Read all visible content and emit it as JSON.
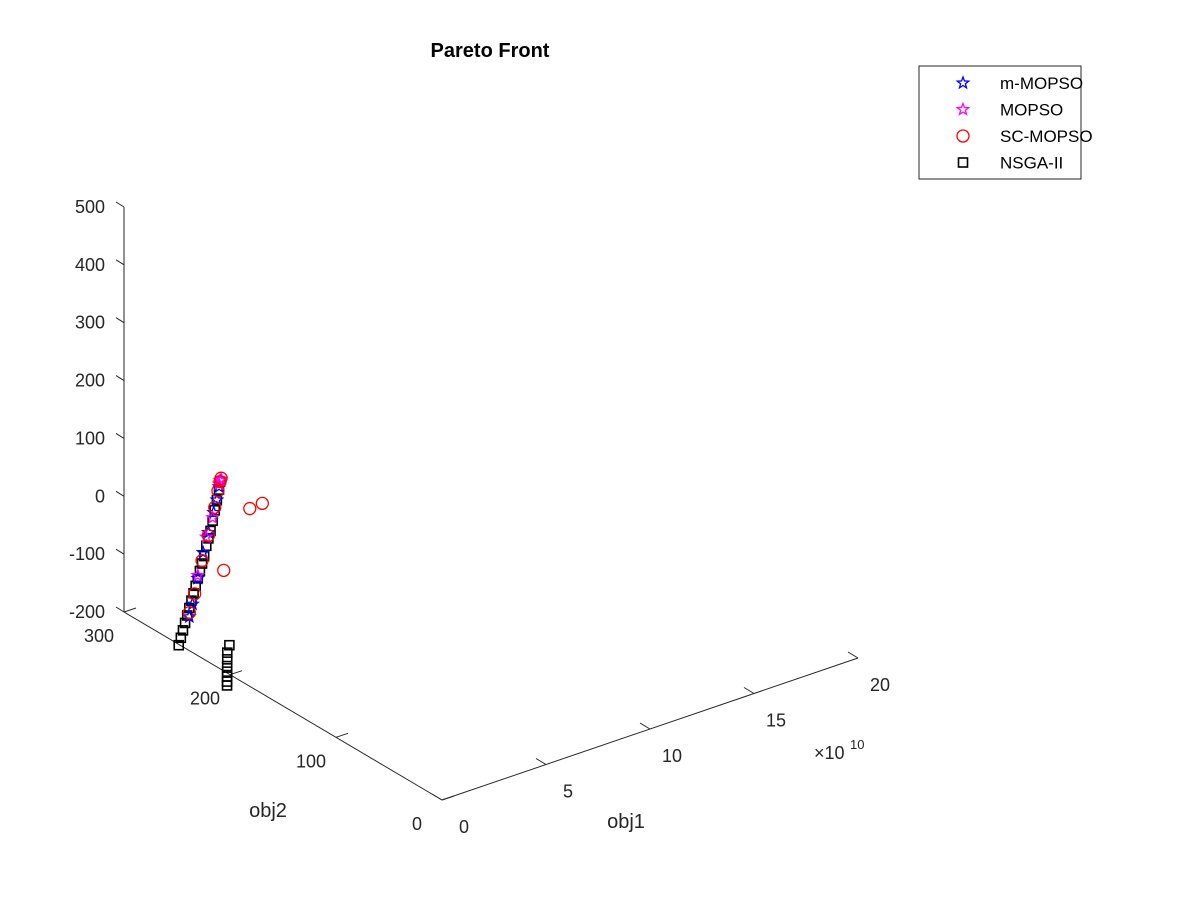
{
  "chart_data": {
    "type": "scatter",
    "projection": "3d",
    "title": "Pareto Front",
    "xlabel": "obj1",
    "ylabel": "obj2",
    "zlabel": "",
    "x_exponent": "×10",
    "x_exponent_power": "10",
    "xlim": [
      0,
      20
    ],
    "ylim": [
      0,
      300
    ],
    "zlim": [
      -200,
      500
    ],
    "x_ticks": [
      0,
      5,
      10,
      15,
      20
    ],
    "x_tick_labels": [
      "0",
      "5",
      "10",
      "15",
      "20"
    ],
    "y_ticks": [
      0,
      100,
      200,
      300
    ],
    "y_tick_labels": [
      "0",
      "100",
      "200",
      "300"
    ],
    "z_ticks": [
      -200,
      -100,
      0,
      100,
      200,
      300,
      400,
      500
    ],
    "z_tick_labels": [
      "-200",
      "-100",
      "0",
      "100",
      "200",
      "300",
      "400",
      "500"
    ],
    "grid": false,
    "legend_position": "top-right",
    "series": [
      {
        "name": "m-MOPSO",
        "marker": "star",
        "color": "#0000ff",
        "points": [
          {
            "x": 1.0,
            "y": 230,
            "z": 80
          },
          {
            "x": 1.0,
            "y": 232,
            "z": 55
          },
          {
            "x": 1.0,
            "y": 235,
            "z": 30
          },
          {
            "x": 1.0,
            "y": 240,
            "z": -10
          },
          {
            "x": 1.0,
            "y": 245,
            "z": -50
          },
          {
            "x": 1.0,
            "y": 250,
            "z": -100
          },
          {
            "x": 1.0,
            "y": 255,
            "z": -150
          },
          {
            "x": 1.0,
            "y": 258,
            "z": -175
          }
        ]
      },
      {
        "name": "MOPSO",
        "marker": "star",
        "color": "#ff00ff",
        "points": [
          {
            "x": 1.0,
            "y": 228,
            "z": 95
          },
          {
            "x": 1.0,
            "y": 229,
            "z": 92
          },
          {
            "x": 1.0,
            "y": 230,
            "z": 85
          },
          {
            "x": 1.0,
            "y": 236,
            "z": 20
          },
          {
            "x": 1.0,
            "y": 242,
            "z": -20
          },
          {
            "x": 1.0,
            "y": 250,
            "z": -95
          }
        ]
      },
      {
        "name": "SC-MOPSO",
        "marker": "circle",
        "color": "#ff0000",
        "points": [
          {
            "x": 1.0,
            "y": 228,
            "z": 97
          },
          {
            "x": 1.0,
            "y": 229,
            "z": 90
          },
          {
            "x": 1.0,
            "y": 231,
            "z": 72
          },
          {
            "x": 1.0,
            "y": 234,
            "z": 40
          },
          {
            "x": 1.0,
            "y": 240,
            "z": -15
          },
          {
            "x": 1.0,
            "y": 246,
            "z": -65
          },
          {
            "x": 1.0,
            "y": 253,
            "z": -130
          },
          {
            "x": 1.0,
            "y": 258,
            "z": -168
          },
          {
            "x": 3.5,
            "y": 250,
            "z": -10
          },
          {
            "x": 4.0,
            "y": 248,
            "z": -5
          },
          {
            "x": 2.5,
            "y": 255,
            "z": -110
          }
        ]
      },
      {
        "name": "NSGA-II",
        "marker": "square",
        "color": "#000000",
        "points": [
          {
            "x": 1.0,
            "y": 229,
            "z": 90
          },
          {
            "x": 1.0,
            "y": 230,
            "z": 75
          },
          {
            "x": 1.0,
            "y": 232,
            "z": 55
          },
          {
            "x": 1.0,
            "y": 234,
            "z": 35
          },
          {
            "x": 1.0,
            "y": 236,
            "z": 15
          },
          {
            "x": 1.0,
            "y": 238,
            "z": -5
          },
          {
            "x": 1.0,
            "y": 240,
            "z": -20
          },
          {
            "x": 1.0,
            "y": 242,
            "z": -35
          },
          {
            "x": 1.0,
            "y": 244,
            "z": -55
          },
          {
            "x": 1.0,
            "y": 246,
            "z": -70
          },
          {
            "x": 1.0,
            "y": 248,
            "z": -85
          },
          {
            "x": 1.0,
            "y": 250,
            "z": -100
          },
          {
            "x": 1.0,
            "y": 252,
            "z": -115
          },
          {
            "x": 1.0,
            "y": 254,
            "z": -130
          },
          {
            "x": 1.0,
            "y": 256,
            "z": -145
          },
          {
            "x": 1.0,
            "y": 258,
            "z": -160
          },
          {
            "x": 1.0,
            "y": 260,
            "z": -175
          },
          {
            "x": 1.0,
            "y": 262,
            "z": -190
          },
          {
            "x": 1.0,
            "y": 264,
            "z": -205
          },
          {
            "x": 1.0,
            "y": 266,
            "z": -220
          },
          {
            "x": 1.0,
            "y": 268,
            "z": -235
          },
          {
            "x": 1.5,
            "y": 230,
            "z": -200
          },
          {
            "x": 1.5,
            "y": 232,
            "z": -215
          },
          {
            "x": 1.6,
            "y": 234,
            "z": -230
          },
          {
            "x": 1.7,
            "y": 236,
            "z": -245
          },
          {
            "x": 1.8,
            "y": 238,
            "z": -258
          },
          {
            "x": 1.9,
            "y": 240,
            "z": -270
          },
          {
            "x": 2.0,
            "y": 242,
            "z": -282
          },
          {
            "x": 2.1,
            "y": 244,
            "z": -292
          }
        ]
      }
    ]
  }
}
